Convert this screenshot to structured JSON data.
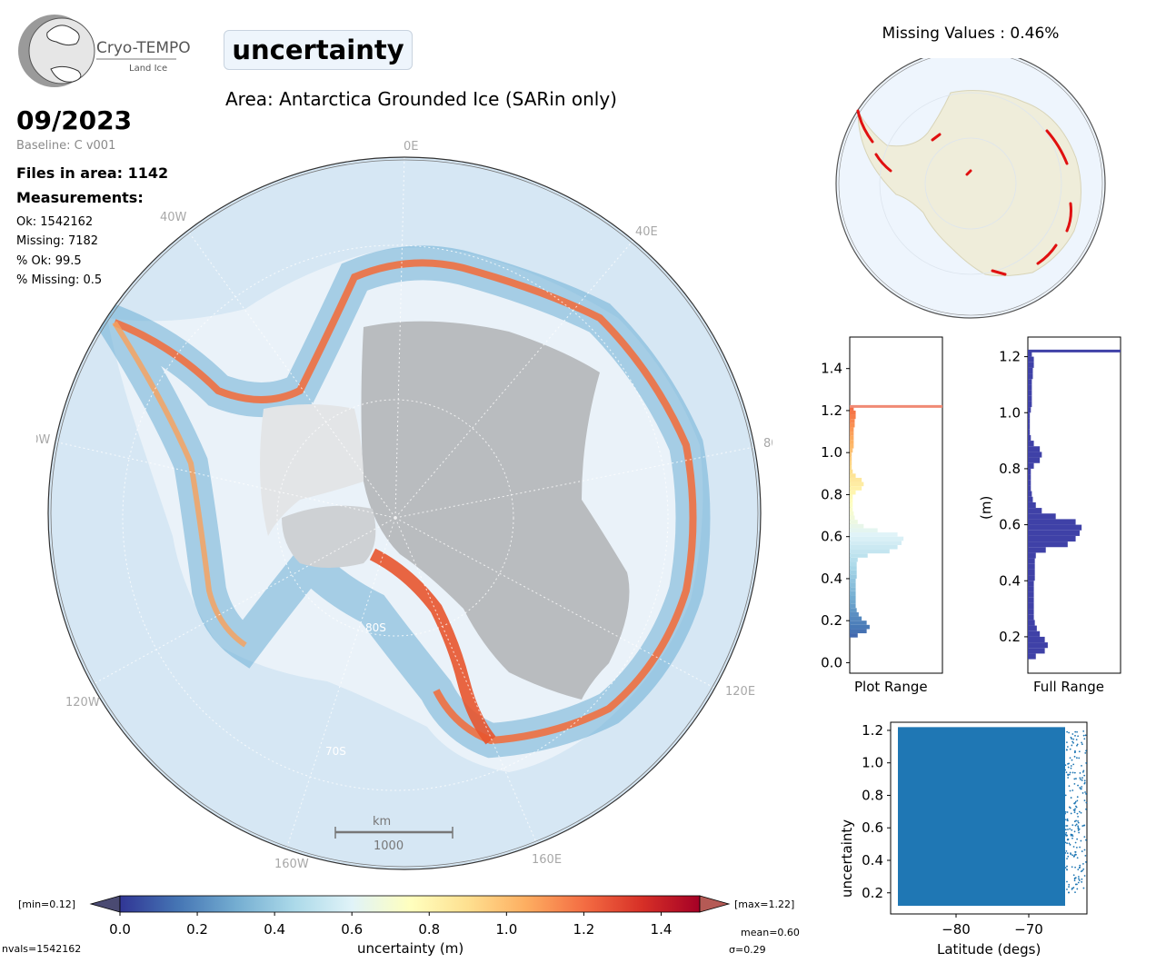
{
  "header": {
    "logo_name": "Cryo-TEMPO",
    "logo_sub": "Land Ice",
    "variable_title": "uncertainty",
    "area_title": "Area: Antarctica Grounded Ice (SARin only)",
    "date": "09/2023",
    "baseline": "Baseline: C v001"
  },
  "stats": {
    "files": "Files in area: 1142",
    "measurements_title": "Measurements:",
    "ok": "Ok: 1542162",
    "missing": "Missing: 7182",
    "pct_ok": "% Ok: 99.5",
    "pct_missing": "% Missing: 0.5"
  },
  "main_map": {
    "meridian_labels": [
      "0E",
      "40E",
      "80E",
      "120E",
      "160E",
      "160W",
      "120W",
      "80W",
      "40W"
    ],
    "parallel_labels": [
      "80S",
      "70S"
    ],
    "scale_bar": {
      "unit": "km",
      "value": "1000"
    },
    "colors": {
      "ocean": "#d6e7f4",
      "ice_shelf": "#f2f4f6",
      "grounded_ice_gray": "#b9bcbf",
      "hillshade": "#e3e5e7"
    }
  },
  "missing_map": {
    "title": "Missing Values : 0.46%",
    "colors": {
      "land": "#efedda",
      "ocean": "#eef5fd",
      "missing": "#e01010"
    }
  },
  "hist_plot_range": {
    "label": "Plot Range",
    "yticks": [
      "0.0",
      "0.2",
      "0.4",
      "0.6",
      "0.8",
      "1.0",
      "1.2",
      "1.4"
    ],
    "max_line_color": "#f08a75"
  },
  "hist_full_range": {
    "label": "Full Range",
    "ylabel": "(m)",
    "yticks": [
      "0.2",
      "0.4",
      "0.6",
      "0.8",
      "1.0",
      "1.2"
    ],
    "bar_color": "#3f41a7"
  },
  "chart_data": [
    {
      "type": "bar",
      "orientation": "horizontal",
      "name": "Plot Range",
      "ylim": [
        -0.05,
        1.55
      ],
      "bins": [
        0.12,
        0.14,
        0.16,
        0.18,
        0.2,
        0.22,
        0.24,
        0.26,
        0.28,
        0.3,
        0.32,
        0.34,
        0.36,
        0.38,
        0.4,
        0.42,
        0.44,
        0.46,
        0.48,
        0.5,
        0.52,
        0.54,
        0.56,
        0.58,
        0.6,
        0.62,
        0.64,
        0.66,
        0.68,
        0.7,
        0.72,
        0.74,
        0.76,
        0.78,
        0.8,
        0.82,
        0.84,
        0.86,
        0.88,
        0.9,
        0.92,
        0.94,
        0.96,
        0.98,
        1.0,
        1.02,
        1.04,
        1.06,
        1.08,
        1.1,
        1.12,
        1.14,
        1.16,
        1.18,
        1.2
      ],
      "values": [
        0.08,
        0.17,
        0.2,
        0.17,
        0.12,
        0.09,
        0.07,
        0.06,
        0.06,
        0.06,
        0.06,
        0.06,
        0.06,
        0.06,
        0.07,
        0.07,
        0.07,
        0.07,
        0.08,
        0.18,
        0.4,
        0.48,
        0.52,
        0.54,
        0.48,
        0.28,
        0.14,
        0.08,
        0.05,
        0.04,
        0.03,
        0.03,
        0.03,
        0.03,
        0.06,
        0.12,
        0.14,
        0.12,
        0.06,
        0.03,
        0.02,
        0.02,
        0.02,
        0.02,
        0.03,
        0.04,
        0.04,
        0.04,
        0.04,
        0.04,
        0.05,
        0.05,
        0.06,
        0.06,
        0.04
      ],
      "max_line": 1.22
    },
    {
      "type": "bar",
      "orientation": "horizontal",
      "name": "Full Range",
      "ylabel": "(m)",
      "ylim": [
        0.07,
        1.27
      ],
      "bins": [
        0.12,
        0.14,
        0.16,
        0.18,
        0.2,
        0.22,
        0.24,
        0.26,
        0.28,
        0.3,
        0.32,
        0.34,
        0.36,
        0.38,
        0.4,
        0.42,
        0.44,
        0.46,
        0.48,
        0.5,
        0.52,
        0.54,
        0.56,
        0.58,
        0.6,
        0.62,
        0.64,
        0.66,
        0.68,
        0.7,
        0.72,
        0.74,
        0.76,
        0.78,
        0.8,
        0.82,
        0.84,
        0.86,
        0.88,
        0.9,
        0.92,
        0.94,
        0.96,
        0.98,
        1.0,
        1.02,
        1.04,
        1.06,
        1.08,
        1.1,
        1.12,
        1.14,
        1.16,
        1.18,
        1.2
      ],
      "values": [
        0.08,
        0.17,
        0.2,
        0.17,
        0.12,
        0.09,
        0.07,
        0.06,
        0.06,
        0.06,
        0.06,
        0.06,
        0.06,
        0.06,
        0.07,
        0.07,
        0.07,
        0.07,
        0.08,
        0.18,
        0.4,
        0.48,
        0.52,
        0.54,
        0.48,
        0.28,
        0.14,
        0.08,
        0.05,
        0.04,
        0.03,
        0.03,
        0.03,
        0.03,
        0.06,
        0.12,
        0.14,
        0.12,
        0.06,
        0.03,
        0.02,
        0.02,
        0.02,
        0.02,
        0.03,
        0.04,
        0.04,
        0.04,
        0.04,
        0.04,
        0.05,
        0.05,
        0.06,
        0.06,
        0.04
      ],
      "max_line": 1.22
    },
    {
      "type": "scatter",
      "xlabel": "Latitude (degs)",
      "ylabel": "uncertainty",
      "xlim": [
        -89,
        -62
      ],
      "ylim": [
        0.07,
        1.25
      ],
      "xticks": [
        -80,
        -70
      ],
      "xtick_labels": [
        "−80",
        "−70"
      ],
      "yticks": [
        0.2,
        0.4,
        0.6,
        0.8,
        1.0,
        1.2
      ],
      "ytick_labels": [
        "0.2",
        "0.4",
        "0.6",
        "0.8",
        "1.0",
        "1.2"
      ],
      "color": "#1f77b4",
      "dense_region": {
        "x": [
          -88,
          -65
        ],
        "y": [
          0.12,
          1.22
        ]
      }
    },
    {
      "type": "colorbar",
      "label": "uncertainty (m)",
      "range": [
        0.0,
        1.5
      ],
      "ticks": [
        0.0,
        0.2,
        0.4,
        0.6,
        0.8,
        1.0,
        1.2,
        1.4
      ],
      "tick_labels": [
        "0.0",
        "0.2",
        "0.4",
        "0.6",
        "0.8",
        "1.0",
        "1.2",
        "1.4"
      ],
      "colormap": "RdYlBu_r",
      "min_label": "[min=0.12]",
      "max_label": "[max=1.22]"
    }
  ],
  "footer": {
    "nvals": "nvals=1542162",
    "mean": "mean=0.60",
    "sigma": "σ=0.29"
  }
}
